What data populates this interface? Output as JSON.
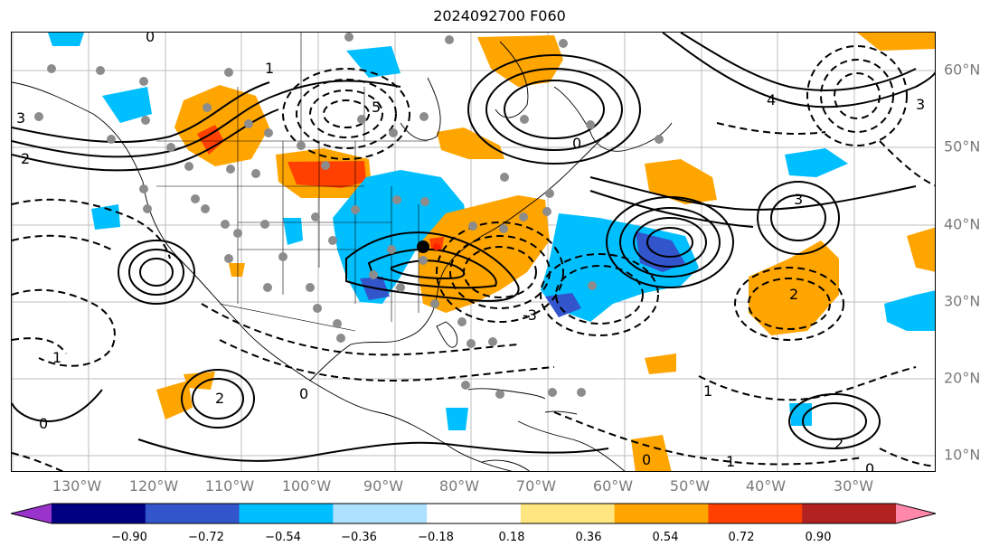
{
  "title": "2024092700 F060",
  "longitude_labels": [
    "130°W",
    "120°W",
    "110°W",
    "100°W",
    "90°W",
    "80°W",
    "70°W",
    "60°W",
    "50°W",
    "40°W",
    "30°W"
  ],
  "latitude_labels": [
    "60°N",
    "50°N",
    "40°N",
    "30°N",
    "20°N",
    "10°N"
  ],
  "colorbar": {
    "ticks": [
      "−0.90",
      "−0.72",
      "−0.54",
      "−0.36",
      "−0.18",
      "0.18",
      "0.36",
      "0.54",
      "0.72",
      "0.90"
    ],
    "colors": [
      "#9933cc",
      "#000080",
      "#3355cc",
      "#00bfff",
      "#aee0ff",
      "#ffffff",
      "#ffe680",
      "#ffa500",
      "#ff4000",
      "#b22222",
      "#ff88aa"
    ]
  },
  "contour_labels": [
    "0",
    "1",
    "2",
    "3",
    "4",
    "5",
    "-1",
    "-2",
    "-3",
    "-4",
    "-5"
  ],
  "shading_colors": {
    "orange": "#ffa500",
    "red": "#ff4000",
    "blue": "#00bfff",
    "dark_blue": "#3355cc"
  }
}
